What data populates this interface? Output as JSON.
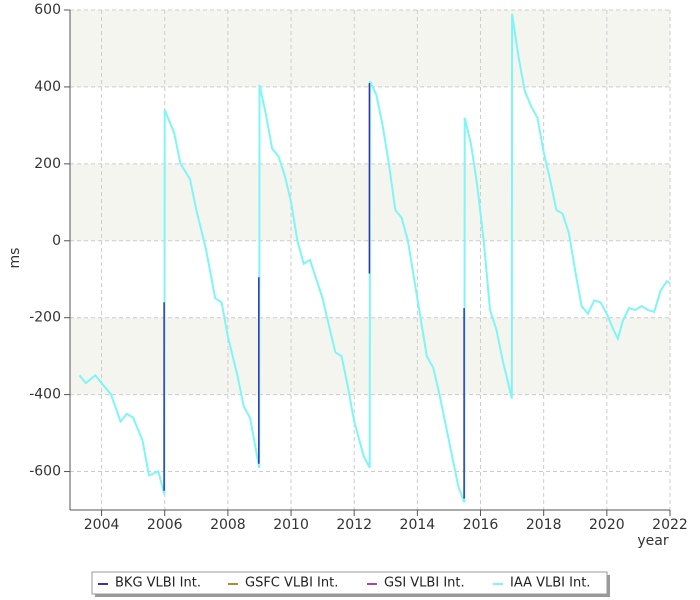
{
  "chart_data": {
    "type": "line",
    "xlabel": "year",
    "ylabel": "ms",
    "xlim": [
      2003,
      2022
    ],
    "ylim": [
      -700,
      600
    ],
    "xticks": [
      2004,
      2006,
      2008,
      2010,
      2012,
      2014,
      2016,
      2018,
      2020,
      2022
    ],
    "yticks": [
      -600,
      -400,
      -200,
      0,
      200,
      400,
      600
    ],
    "grid": true,
    "legend": "bottom",
    "series": [
      {
        "name": "BKG VLBI Int.",
        "color": "#3333aa",
        "x": [
          2005.98,
          2005.98,
          null,
          2008.98,
          2008.98,
          null,
          2012.48,
          2012.48,
          null,
          2015.48,
          2015.48
        ],
        "values": [
          -160,
          -650,
          null,
          -95,
          -580,
          null,
          -85,
          410,
          null,
          -175,
          -670
        ]
      },
      {
        "name": "GSFC VLBI Int.",
        "color": "#999933",
        "x": [],
        "values": []
      },
      {
        "name": "GSI VLBI Int.",
        "color": "#aa44aa",
        "x": [],
        "values": []
      },
      {
        "name": "IAA VLBI Int.",
        "color": "#7ff5f5",
        "x": [
          2003.3,
          2003.5,
          2003.8,
          2004.0,
          2004.3,
          2004.6,
          2004.8,
          2005.0,
          2005.3,
          2005.5,
          2005.8,
          2005.99,
          2006.0,
          2006.3,
          2006.5,
          2006.8,
          2007.0,
          2007.3,
          2007.6,
          2007.8,
          2008.0,
          2008.3,
          2008.5,
          2008.7,
          2008.99,
          2009.0,
          2009.2,
          2009.4,
          2009.6,
          2009.8,
          2010.0,
          2010.2,
          2010.4,
          2010.6,
          2010.8,
          2011.0,
          2011.2,
          2011.4,
          2011.6,
          2011.8,
          2012.0,
          2012.3,
          2012.49,
          2012.5,
          2012.7,
          2012.9,
          2013.1,
          2013.3,
          2013.5,
          2013.7,
          2013.9,
          2014.1,
          2014.3,
          2014.5,
          2014.7,
          2014.9,
          2015.1,
          2015.3,
          2015.49,
          2015.5,
          2015.7,
          2015.9,
          2016.1,
          2016.3,
          2016.5,
          2016.7,
          2016.99,
          2017.0,
          2017.2,
          2017.4,
          2017.6,
          2017.8,
          2018.0,
          2018.2,
          2018.4,
          2018.6,
          2018.8,
          2019.0,
          2019.2,
          2019.4,
          2019.6,
          2019.8,
          2020.0,
          2020.2,
          2020.35,
          2020.5,
          2020.7,
          2020.9,
          2021.1,
          2021.3,
          2021.5,
          2021.7,
          2021.9,
          2022.0
        ],
        "values": [
          -350,
          -370,
          -350,
          -370,
          -400,
          -470,
          -450,
          -460,
          -520,
          -610,
          -600,
          -660,
          340,
          280,
          200,
          160,
          80,
          -20,
          -150,
          -160,
          -250,
          -350,
          -430,
          -460,
          -590,
          405,
          330,
          240,
          220,
          170,
          100,
          0,
          -60,
          -50,
          -100,
          -150,
          -220,
          -290,
          -300,
          -380,
          -470,
          -560,
          -590,
          415,
          380,
          300,
          200,
          80,
          60,
          0,
          -100,
          -200,
          -300,
          -330,
          -400,
          -480,
          -560,
          -640,
          -680,
          320,
          250,
          140,
          0,
          -180,
          -230,
          -310,
          -410,
          590,
          480,
          390,
          350,
          320,
          230,
          160,
          80,
          70,
          20,
          -80,
          -170,
          -190,
          -155,
          -160,
          -190,
          -230,
          -255,
          -210,
          -175,
          -180,
          -170,
          -180,
          -185,
          -130,
          -105,
          -110
        ]
      }
    ]
  }
}
